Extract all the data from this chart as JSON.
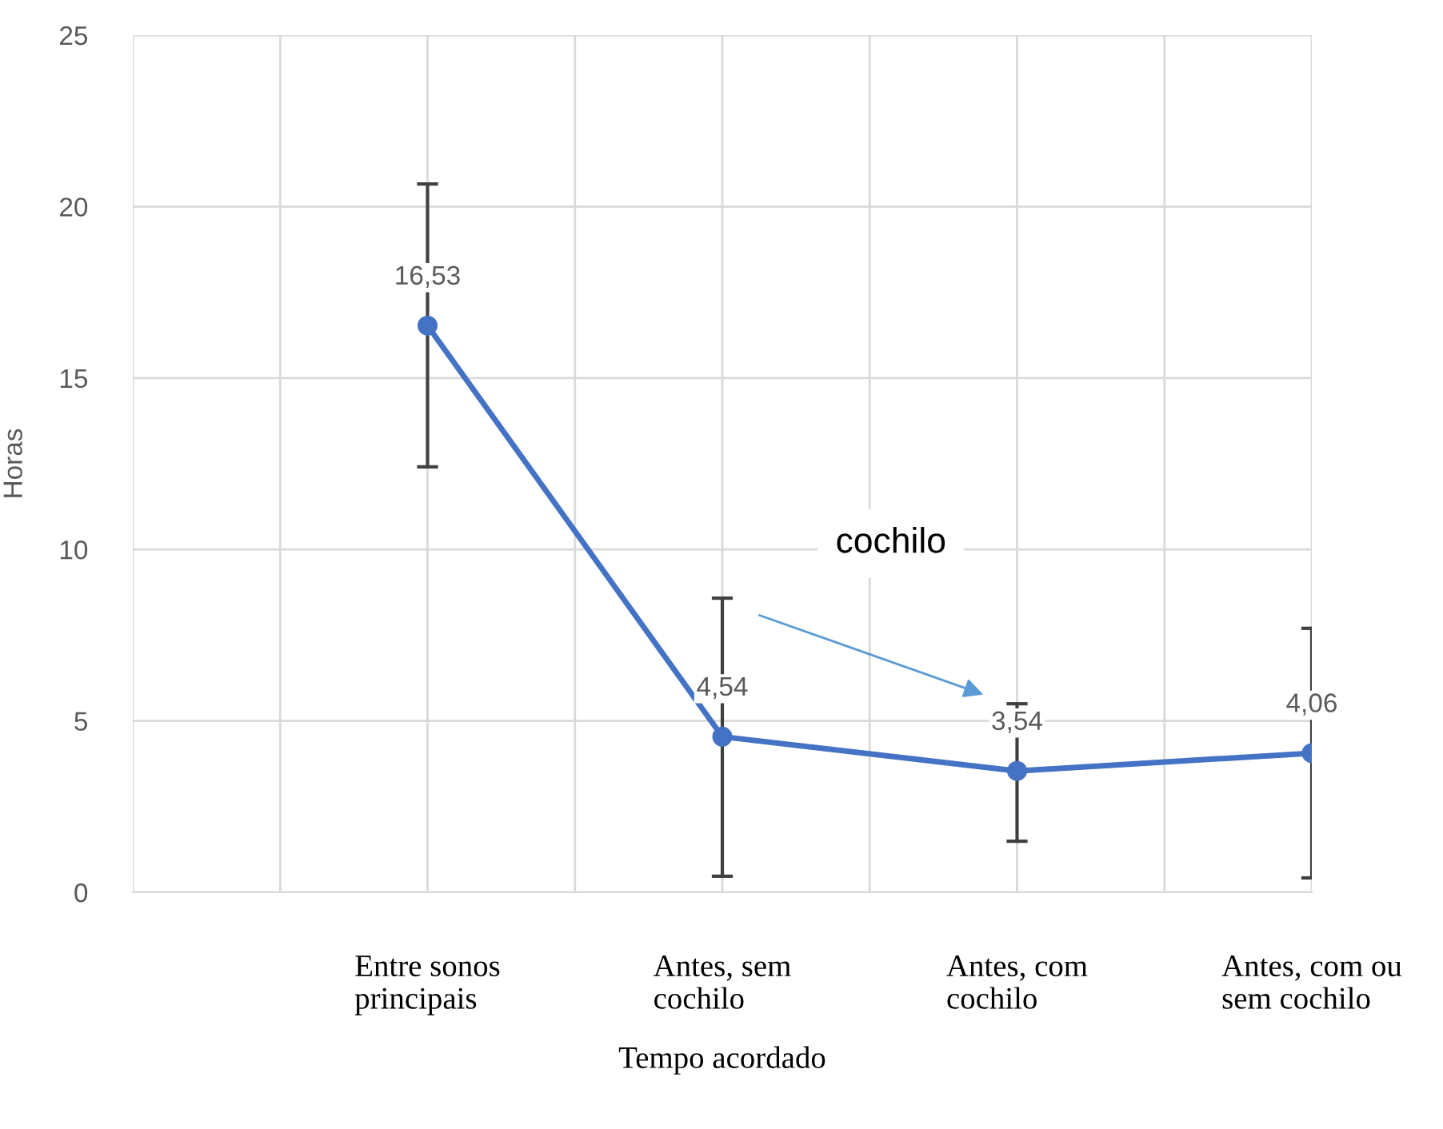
{
  "chart_data": {
    "type": "line",
    "xlabel": "Tempo acordado",
    "ylabel": "Horas",
    "categories": [
      null,
      "Entre sonos principais",
      "Antes, sem cochilo",
      "Antes, com cochilo",
      "Antes, com ou sem cochilo"
    ],
    "series": [
      {
        "color": "#4472c4",
        "values": [
          null,
          16.53,
          4.54,
          3.54,
          4.06
        ],
        "errors": [
          null,
          [
            12.41,
            20.66
          ],
          [
            0.47,
            8.58
          ],
          [
            1.49,
            5.5
          ],
          [
            0.42,
            7.7
          ]
        ],
        "value_labels": [
          null,
          "16,53",
          "4,54",
          "3,54",
          "4,06"
        ]
      }
    ],
    "ylim": [
      0,
      25
    ],
    "yticks": [
      0,
      5,
      10,
      15,
      20,
      25
    ],
    "grid": true,
    "marker": "circle",
    "line_style": "solid",
    "annotations": [
      "cochilo"
    ]
  }
}
